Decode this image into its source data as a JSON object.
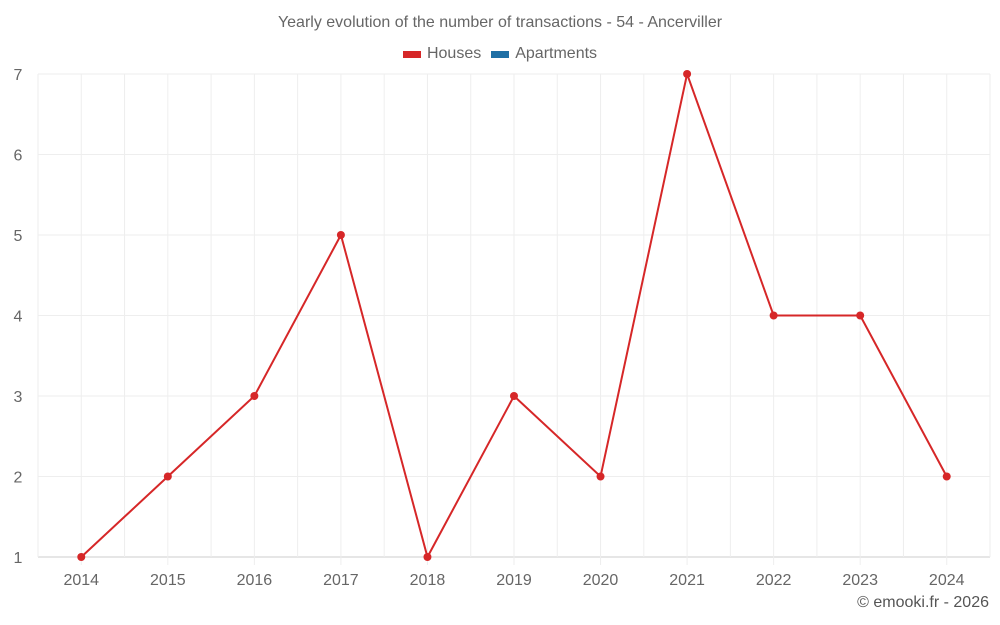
{
  "title": "Yearly evolution of the number of transactions - 54 - Ancerviller",
  "legend": [
    {
      "label": "Houses",
      "color": "#d62728"
    },
    {
      "label": "Apartments",
      "color": "#1f6fa5"
    }
  ],
  "credit": "© emooki.fr - 2026",
  "chart_data": {
    "type": "line",
    "title": "Yearly evolution of the number of transactions - 54 - Ancerviller",
    "xlabel": "",
    "ylabel": "",
    "categories": [
      "2014",
      "2015",
      "2016",
      "2017",
      "2018",
      "2019",
      "2020",
      "2021",
      "2022",
      "2023",
      "2024"
    ],
    "series": [
      {
        "name": "Houses",
        "color": "#d62728",
        "values": [
          1,
          2,
          3,
          5,
          1,
          3,
          2,
          7,
          4,
          4,
          2
        ]
      },
      {
        "name": "Apartments",
        "color": "#1f6fa5",
        "values": []
      }
    ],
    "yticks": [
      1,
      2,
      3,
      4,
      5,
      6,
      7
    ],
    "ylim": [
      1,
      7
    ],
    "grid": true,
    "legend_position": "top"
  }
}
